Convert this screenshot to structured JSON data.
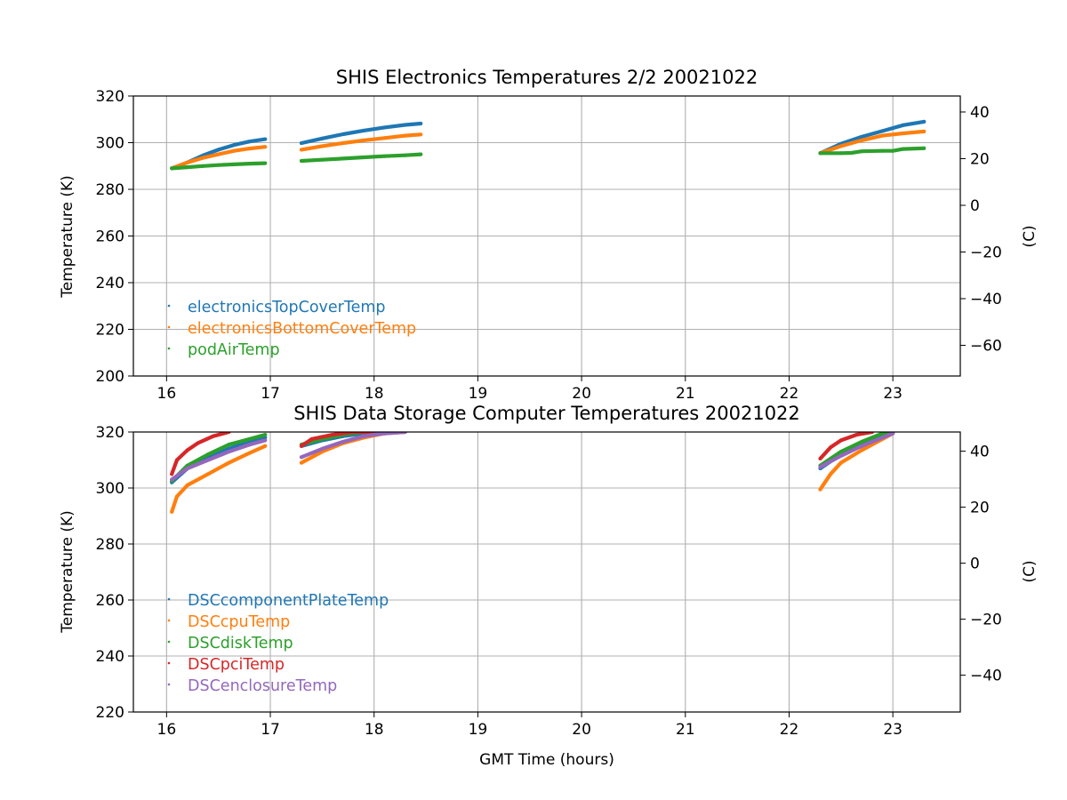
{
  "chart_data": [
    {
      "type": "scatter",
      "title": "SHIS Electronics Temperatures 2/2 20021022",
      "xlabel": "",
      "ylabel": "Temperature (K)",
      "y2label": "(C)",
      "xlim": [
        15.68,
        23.65
      ],
      "ylim": [
        200,
        320
      ],
      "xticks": [
        "16",
        "17",
        "18",
        "19",
        "20",
        "21",
        "22",
        "23"
      ],
      "yticks": [
        "200",
        "220",
        "240",
        "260",
        "280",
        "300",
        "320"
      ],
      "y2ticks": [
        "−60",
        "−40",
        "−20",
        "0",
        "20",
        "40"
      ],
      "grid": true,
      "legend_position": "lower-left",
      "series": [
        {
          "name": "electronicsTopCoverTemp",
          "color": "#1f77b4",
          "segments": [
            {
              "x": [
                16.05,
                16.2,
                16.35,
                16.5,
                16.65,
                16.8,
                16.95
              ],
              "y": [
                289.0,
                291.5,
                294.5,
                297.0,
                299.0,
                300.5,
                301.5
              ]
            },
            {
              "x": [
                17.3,
                17.5,
                17.7,
                17.9,
                18.1,
                18.3,
                18.45
              ],
              "y": [
                299.8,
                301.8,
                303.6,
                305.2,
                306.5,
                307.6,
                308.2
              ]
            },
            {
              "x": [
                22.3,
                22.5,
                22.7,
                22.9,
                23.1,
                23.3
              ],
              "y": [
                295.5,
                299.5,
                302.5,
                305.0,
                307.5,
                309.0
              ]
            }
          ]
        },
        {
          "name": "electronicsBottomCoverTemp",
          "color": "#ff7f0e",
          "segments": [
            {
              "x": [
                16.05,
                16.2,
                16.35,
                16.5,
                16.65,
                16.8,
                16.95
              ],
              "y": [
                289.0,
                291.5,
                293.5,
                295.0,
                296.5,
                297.5,
                298.2
              ]
            },
            {
              "x": [
                17.3,
                17.5,
                17.7,
                17.9,
                18.1,
                18.3,
                18.45
              ],
              "y": [
                297.0,
                298.5,
                299.8,
                301.0,
                302.0,
                303.0,
                303.5
              ]
            },
            {
              "x": [
                22.3,
                22.5,
                22.7,
                22.9,
                23.1,
                23.3
              ],
              "y": [
                295.5,
                298.5,
                301.0,
                303.0,
                304.0,
                304.8
              ]
            }
          ]
        },
        {
          "name": "podAirTemp",
          "color": "#2ca02c",
          "segments": [
            {
              "x": [
                16.05,
                16.2,
                16.35,
                16.5,
                16.65,
                16.8,
                16.95
              ],
              "y": [
                289.0,
                289.5,
                290.0,
                290.4,
                290.7,
                291.0,
                291.2
              ]
            },
            {
              "x": [
                17.3,
                17.5,
                17.7,
                17.9,
                18.1,
                18.3,
                18.45
              ],
              "y": [
                292.2,
                292.7,
                293.2,
                293.7,
                294.2,
                294.6,
                295.0
              ]
            },
            {
              "x": [
                22.3,
                22.5,
                22.6,
                22.7,
                22.9,
                23.0,
                23.1,
                23.3
              ],
              "y": [
                295.5,
                295.5,
                295.6,
                296.3,
                296.5,
                296.5,
                297.3,
                297.6
              ]
            }
          ]
        }
      ],
      "legend": [
        {
          "label": "electronicsTopCoverTemp",
          "color": "#1f77b4"
        },
        {
          "label": "electronicsBottomCoverTemp",
          "color": "#ff7f0e"
        },
        {
          "label": "podAirTemp",
          "color": "#2ca02c"
        }
      ]
    },
    {
      "type": "scatter",
      "title": "SHIS Data Storage Computer Temperatures 20021022",
      "xlabel": "GMT Time (hours)",
      "ylabel": "Temperature (K)",
      "y2label": "(C)",
      "xlim": [
        15.68,
        23.65
      ],
      "ylim": [
        220,
        320
      ],
      "xticks": [
        "16",
        "17",
        "18",
        "19",
        "20",
        "21",
        "22",
        "23"
      ],
      "yticks": [
        "220",
        "240",
        "260",
        "280",
        "300",
        "320"
      ],
      "y2ticks": [
        "−40",
        "−20",
        "0",
        "20",
        "40"
      ],
      "grid": true,
      "legend_position": "lower-left",
      "series": [
        {
          "name": "DSCcomponentPlateTemp",
          "color": "#1f77b4",
          "segments": [
            {
              "x": [
                16.05,
                16.2,
                16.4,
                16.6,
                16.8,
                16.95
              ],
              "y": [
                302.0,
                307.0,
                311.0,
                314.0,
                316.5,
                318.0
              ]
            },
            {
              "x": [
                17.3,
                17.5,
                17.7,
                17.9,
                18.1,
                18.3
              ],
              "y": [
                315.0,
                317.0,
                318.5,
                319.5,
                320.0,
                320.0
              ]
            },
            {
              "x": [
                22.3,
                22.5,
                22.7,
                22.9,
                23.0
              ],
              "y": [
                307.0,
                312.0,
                316.0,
                319.0,
                320.0
              ]
            }
          ]
        },
        {
          "name": "DSCcpuTemp",
          "color": "#ff7f0e",
          "segments": [
            {
              "x": [
                16.05,
                16.1,
                16.2,
                16.4,
                16.6,
                16.8,
                16.95
              ],
              "y": [
                291.5,
                297.0,
                301.0,
                305.0,
                309.0,
                312.5,
                315.0
              ]
            },
            {
              "x": [
                17.3,
                17.5,
                17.7,
                17.9,
                18.1,
                18.3
              ],
              "y": [
                309.0,
                313.0,
                316.0,
                318.0,
                319.5,
                320.0
              ]
            },
            {
              "x": [
                22.3,
                22.4,
                22.5,
                22.7,
                22.9,
                23.0
              ],
              "y": [
                299.5,
                305.0,
                309.0,
                313.5,
                317.5,
                319.5
              ]
            }
          ]
        },
        {
          "name": "DSCdiskTemp",
          "color": "#2ca02c",
          "segments": [
            {
              "x": [
                16.05,
                16.2,
                16.4,
                16.6,
                16.8,
                16.95
              ],
              "y": [
                302.5,
                308.0,
                312.0,
                315.5,
                317.5,
                319.0
              ]
            },
            {
              "x": [
                17.3,
                17.5,
                17.7,
                17.9,
                18.1
              ],
              "y": [
                315.5,
                317.5,
                319.0,
                320.0,
                320.0
              ]
            },
            {
              "x": [
                22.3,
                22.5,
                22.7,
                22.9,
                23.0
              ],
              "y": [
                308.0,
                313.0,
                316.5,
                319.5,
                320.0
              ]
            }
          ]
        },
        {
          "name": "DSCpciTemp",
          "color": "#d62728",
          "segments": [
            {
              "x": [
                16.05,
                16.1,
                16.2,
                16.3,
                16.45,
                16.6
              ],
              "y": [
                305.0,
                310.0,
                313.5,
                316.0,
                318.5,
                320.0
              ]
            },
            {
              "x": [
                17.3,
                17.4,
                17.6,
                17.8,
                18.0
              ],
              "y": [
                315.0,
                317.5,
                319.0,
                320.0,
                320.0
              ]
            },
            {
              "x": [
                22.3,
                22.4,
                22.5,
                22.65,
                22.8
              ],
              "y": [
                310.5,
                314.5,
                317.0,
                319.0,
                320.0
              ]
            }
          ]
        },
        {
          "name": "DSCenclosureTemp",
          "color": "#9467bd",
          "segments": [
            {
              "x": [
                16.05,
                16.2,
                16.4,
                16.6,
                16.8,
                16.95
              ],
              "y": [
                303.0,
                307.0,
                310.0,
                313.0,
                315.5,
                317.0
              ]
            },
            {
              "x": [
                17.3,
                17.5,
                17.7,
                17.9,
                18.1,
                18.3
              ],
              "y": [
                311.0,
                314.0,
                316.5,
                318.5,
                319.5,
                320.0
              ]
            },
            {
              "x": [
                22.3,
                22.5,
                22.7,
                22.9,
                23.0
              ],
              "y": [
                307.5,
                311.5,
                315.0,
                318.0,
                319.5
              ]
            }
          ]
        }
      ],
      "legend": [
        {
          "label": "DSCcomponentPlateTemp",
          "color": "#1f77b4"
        },
        {
          "label": "DSCcpuTemp",
          "color": "#ff7f0e"
        },
        {
          "label": "DSCdiskTemp",
          "color": "#2ca02c"
        },
        {
          "label": "DSCpciTemp",
          "color": "#d62728"
        },
        {
          "label": "DSCenclosureTemp",
          "color": "#9467bd"
        }
      ]
    }
  ]
}
